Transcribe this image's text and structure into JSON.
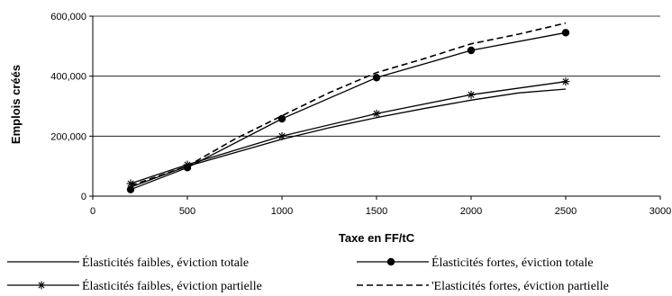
{
  "chart_data": {
    "type": "line",
    "xlabel": "Taxe en FF/tC",
    "ylabel": "Emplois créés",
    "xlim": [
      0,
      3000
    ],
    "ylim": [
      0,
      600000
    ],
    "x_ticks": [
      "0",
      "500",
      "1000",
      "1500",
      "2000",
      "2500",
      "3000"
    ],
    "y_ticks": [
      "0",
      "200,000",
      "400,000",
      "600,000"
    ],
    "grid": "horizontal",
    "legend_position": "bottom",
    "series": [
      {
        "name": "Élasticités faibles, éviction totale",
        "style": "solid",
        "marker": "none",
        "color": "#000000",
        "points": [
          [
            200,
            30000
          ],
          [
            500,
            100000
          ],
          [
            750,
            145000
          ],
          [
            1000,
            190000
          ],
          [
            1250,
            228000
          ],
          [
            1500,
            262000
          ],
          [
            1750,
            292000
          ],
          [
            2000,
            320000
          ],
          [
            2250,
            344000
          ],
          [
            2500,
            357000
          ]
        ]
      },
      {
        "name": "Élasticités fortes, éviction totale",
        "style": "solid",
        "marker": "circle",
        "color": "#000000",
        "points": [
          [
            200,
            22000
          ],
          [
            500,
            95000
          ],
          [
            1000,
            258000
          ],
          [
            1500,
            395000
          ],
          [
            2000,
            486000
          ],
          [
            2500,
            545000
          ]
        ]
      },
      {
        "name": "Élasticités faibles, éviction partielle",
        "style": "solid",
        "marker": "star",
        "color": "#000000",
        "points": [
          [
            200,
            42000
          ],
          [
            500,
            105000
          ],
          [
            1000,
            200000
          ],
          [
            1500,
            275000
          ],
          [
            2000,
            338000
          ],
          [
            2500,
            382000
          ]
        ]
      },
      {
        "name": "'Elasticités fortes, éviction partielle",
        "style": "dashed",
        "marker": "none",
        "color": "#000000",
        "points": [
          [
            200,
            35000
          ],
          [
            500,
            100000
          ],
          [
            750,
            190000
          ],
          [
            1000,
            268000
          ],
          [
            1250,
            345000
          ],
          [
            1500,
            412000
          ],
          [
            1750,
            458000
          ],
          [
            2000,
            508000
          ],
          [
            2250,
            540000
          ],
          [
            2500,
            577000
          ]
        ]
      }
    ]
  }
}
